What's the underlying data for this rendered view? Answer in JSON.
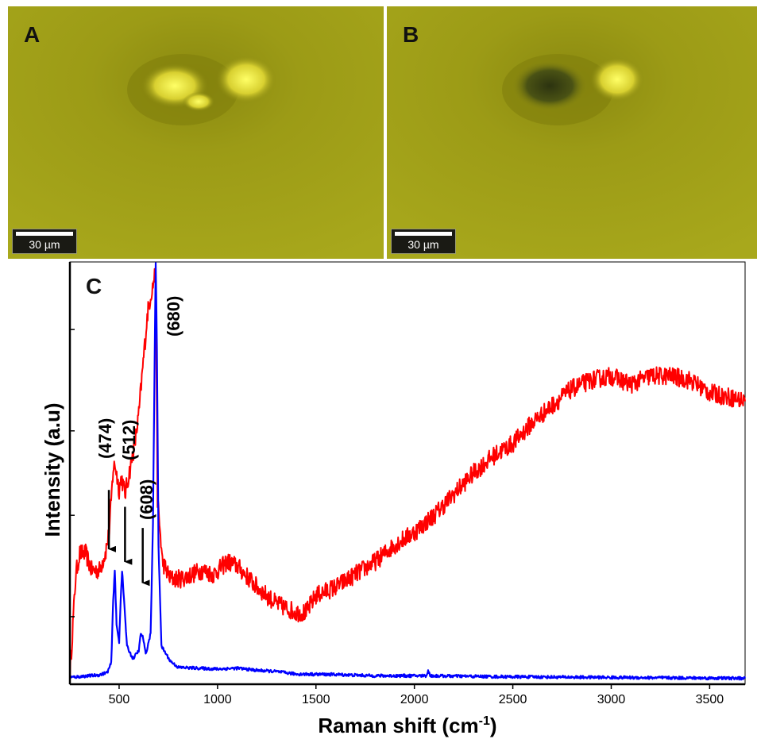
{
  "images": {
    "a": {
      "label": "A",
      "scale_label": "30 µm"
    },
    "b": {
      "label": "B",
      "scale_label": "30 µm"
    }
  },
  "colors": {
    "background": "#9e9d16",
    "series_red": "#ff0000",
    "series_blue": "#0000ff",
    "annotation": "#000000"
  },
  "chart_data": {
    "type": "line",
    "panel_label": "C",
    "xlabel": "Raman shift (cm",
    "xlabel_sup": "-1",
    "xlabel_end": ")",
    "ylabel": "Intensity (a.u)",
    "xlim": [
      250,
      3680
    ],
    "ylim": [
      0,
      100
    ],
    "x_ticks": [
      500,
      1000,
      1500,
      2000,
      2500,
      3000,
      3500
    ],
    "x_tick_labels": [
      "500",
      "1000",
      "1500",
      "2000",
      "2500",
      "3000",
      "3500"
    ],
    "y_ticks": [
      16,
      40,
      60,
      84
    ],
    "grid": false,
    "series": [
      {
        "color": "#ff0000",
        "noise": 2.2,
        "points": [
          [
            250,
            2
          ],
          [
            265,
            14
          ],
          [
            280,
            26
          ],
          [
            300,
            31
          ],
          [
            330,
            31
          ],
          [
            360,
            27
          ],
          [
            400,
            27
          ],
          [
            430,
            31
          ],
          [
            450,
            36
          ],
          [
            470,
            51
          ],
          [
            480,
            52
          ],
          [
            500,
            46
          ],
          [
            512,
            49
          ],
          [
            530,
            45
          ],
          [
            560,
            52
          ],
          [
            580,
            57
          ],
          [
            600,
            64
          ],
          [
            620,
            75
          ],
          [
            645,
            88
          ],
          [
            660,
            92
          ],
          [
            670,
            94
          ],
          [
            685,
            98
          ],
          [
            695,
            44
          ],
          [
            720,
            29
          ],
          [
            760,
            25
          ],
          [
            820,
            25
          ],
          [
            870,
            26
          ],
          [
            920,
            27
          ],
          [
            980,
            26
          ],
          [
            1050,
            29
          ],
          [
            1100,
            28
          ],
          [
            1200,
            23
          ],
          [
            1300,
            19
          ],
          [
            1400,
            17
          ],
          [
            1450,
            17
          ],
          [
            1500,
            21
          ],
          [
            1600,
            23
          ],
          [
            1700,
            26
          ],
          [
            1800,
            29
          ],
          [
            1900,
            33
          ],
          [
            2000,
            36
          ],
          [
            2100,
            40
          ],
          [
            2200,
            45
          ],
          [
            2300,
            50
          ],
          [
            2400,
            54
          ],
          [
            2500,
            57
          ],
          [
            2600,
            62
          ],
          [
            2700,
            66
          ],
          [
            2800,
            70
          ],
          [
            2900,
            72
          ],
          [
            3000,
            73
          ],
          [
            3100,
            71
          ],
          [
            3200,
            73
          ],
          [
            3300,
            73
          ],
          [
            3400,
            72
          ],
          [
            3500,
            69
          ],
          [
            3600,
            68
          ],
          [
            3680,
            67
          ]
        ]
      },
      {
        "color": "#0000ff",
        "noise": 0.35,
        "points": [
          [
            250,
            1.6
          ],
          [
            400,
            2.2
          ],
          [
            440,
            2.8
          ],
          [
            460,
            5
          ],
          [
            470,
            20
          ],
          [
            478,
            27
          ],
          [
            487,
            14
          ],
          [
            500,
            10
          ],
          [
            508,
            20
          ],
          [
            515,
            27
          ],
          [
            525,
            20
          ],
          [
            540,
            9
          ],
          [
            570,
            6
          ],
          [
            600,
            8
          ],
          [
            610,
            12
          ],
          [
            622,
            11
          ],
          [
            635,
            7
          ],
          [
            660,
            12
          ],
          [
            672,
            38
          ],
          [
            680,
            75
          ],
          [
            686,
            100
          ],
          [
            692,
            80
          ],
          [
            700,
            33
          ],
          [
            715,
            9
          ],
          [
            760,
            5.5
          ],
          [
            800,
            4
          ],
          [
            900,
            3.8
          ],
          [
            1000,
            3.6
          ],
          [
            1100,
            3.8
          ],
          [
            1200,
            3.3
          ],
          [
            1300,
            3
          ],
          [
            1400,
            2.4
          ],
          [
            1600,
            2.3
          ],
          [
            1800,
            2.0
          ],
          [
            2000,
            2.0
          ],
          [
            2060,
            2.0
          ],
          [
            2070,
            3.2
          ],
          [
            2080,
            2.0
          ],
          [
            2400,
            1.8
          ],
          [
            3000,
            1.6
          ],
          [
            3680,
            1.4
          ]
        ]
      }
    ],
    "annotations": [
      {
        "text": "(474)",
        "x": 474
      },
      {
        "text": "(512)",
        "x": 512
      },
      {
        "text": "(608)",
        "x": 608
      },
      {
        "text": "(680)",
        "x": 680
      }
    ],
    "arrows": [
      {
        "x": 448,
        "y_from": 46,
        "y_to": 32
      },
      {
        "x": 530,
        "y_from": 42,
        "y_to": 29
      },
      {
        "x": 620,
        "y_from": 37,
        "y_to": 24
      }
    ]
  }
}
